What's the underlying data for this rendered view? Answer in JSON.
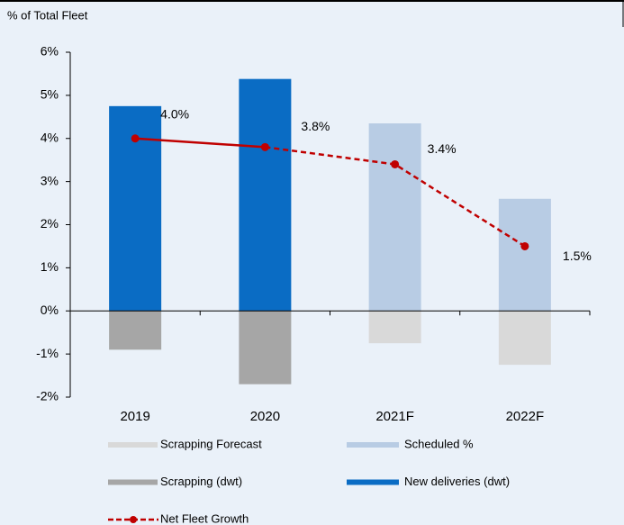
{
  "chart_data": {
    "type": "bar",
    "y_axis_label": "% of Total Fleet",
    "categories": [
      "2019",
      "2020",
      "2021F",
      "2022F"
    ],
    "series": [
      {
        "name": "Scrapping Forecast",
        "color": "#d9d9d9",
        "values": [
          null,
          null,
          -0.75,
          -1.25
        ]
      },
      {
        "name": "Scheduled %",
        "color": "#b8cce4",
        "values": [
          null,
          null,
          4.35,
          2.6
        ]
      },
      {
        "name": "Scrapping (dwt)",
        "color": "#a6a6a6",
        "values": [
          -0.9,
          -1.7,
          null,
          null
        ]
      },
      {
        "name": "New deliveries (dwt)",
        "color": "#0a6cc4",
        "values": [
          4.75,
          5.38,
          null,
          null
        ]
      },
      {
        "name": "Net Fleet Growth",
        "type": "line",
        "color": "#c00000",
        "values": [
          4.0,
          3.8,
          3.4,
          1.5
        ],
        "value_labels": [
          "4.0%",
          "3.8%",
          "3.4%",
          "1.5%"
        ]
      }
    ],
    "ylim": [
      -2,
      6
    ],
    "yticks": [
      {
        "value": -2,
        "label": "-2%"
      },
      {
        "value": -1,
        "label": "-1%"
      },
      {
        "value": 0,
        "label": "0%"
      },
      {
        "value": 1,
        "label": "1%"
      },
      {
        "value": 2,
        "label": "2%"
      },
      {
        "value": 3,
        "label": "3%"
      },
      {
        "value": 4,
        "label": "4%"
      },
      {
        "value": 5,
        "label": "5%"
      },
      {
        "value": 6,
        "label": "6%"
      }
    ],
    "grid": false
  }
}
